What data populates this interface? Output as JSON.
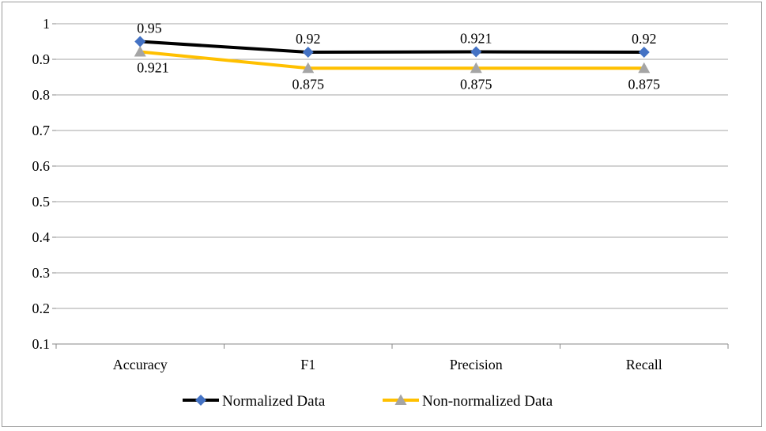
{
  "chart_data": {
    "type": "line",
    "categories": [
      "Accuracy",
      "F1",
      "Precision",
      "Recall"
    ],
    "y_axis": {
      "min": 0.1,
      "max": 1,
      "tick_labels": [
        "0.1",
        "0.2",
        "0.3",
        "0.4",
        "0.5",
        "0.6",
        "0.7",
        "0.8",
        "0.9",
        "1"
      ]
    },
    "grid": true,
    "legend_position": "bottom",
    "series": [
      {
        "name": "Normalized Data",
        "values": [
          0.95,
          0.92,
          0.921,
          0.92
        ],
        "labels": [
          "0.95",
          "0.92",
          "0.921",
          "0.92"
        ],
        "line_color": "#000000",
        "marker": "diamond",
        "marker_color": "#4472C4"
      },
      {
        "name": "Non-normalized Data",
        "values": [
          0.921,
          0.875,
          0.875,
          0.875
        ],
        "labels": [
          "0.921",
          "0.875",
          "0.875",
          "0.875"
        ],
        "line_color": "#FFC000",
        "marker": "triangle",
        "marker_color": "#A5A5A5"
      }
    ]
  }
}
